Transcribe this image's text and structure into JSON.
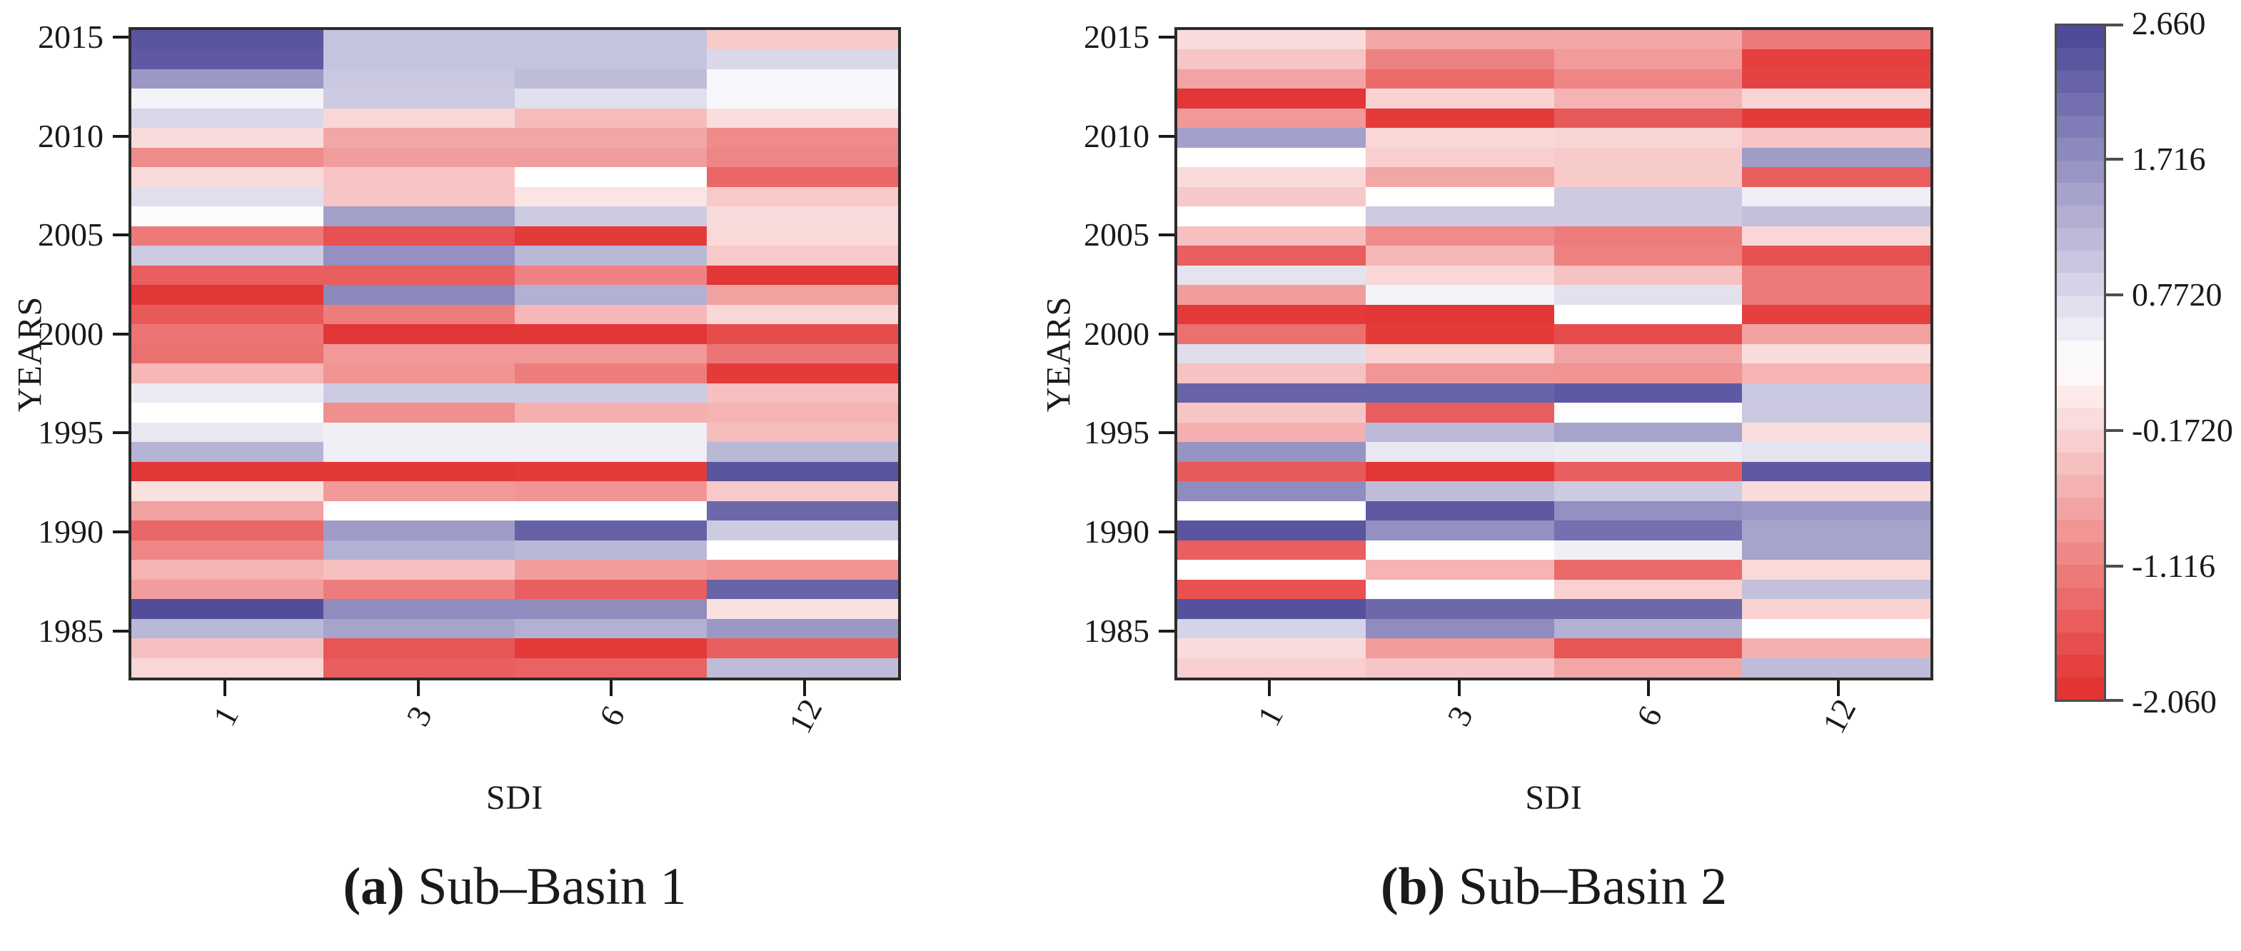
{
  "figure": {
    "background": "#ffffff",
    "border_color": "#2b2b2b",
    "tick_color": "#1a1a1a"
  },
  "colorbar": {
    "tick_labels": [
      "2.660",
      "1.716",
      "0.7720",
      "-0.1720",
      "-1.116",
      "-2.060"
    ],
    "tick_values": [
      2.66,
      1.716,
      0.772,
      -0.172,
      -1.116,
      -2.06
    ],
    "vmin": -2.06,
    "vmax": 2.66,
    "midpoint": 0.3,
    "color_high": "#4a4496",
    "color_mid": "#ffffff",
    "color_low": "#e22c2c",
    "steps": 30,
    "legend_position": "right"
  },
  "chart_data": [
    {
      "type": "heatmap",
      "panel": "a",
      "caption_marker": "(a)",
      "caption_text": "Sub–Basin 1",
      "xlabel": "SDI",
      "ylabel": "YEARS",
      "x_categories": [
        "1",
        "3",
        "6",
        "12"
      ],
      "y_tick_labels": [
        "2015",
        "2010",
        "2005",
        "2000",
        "1995",
        "1990",
        "1985"
      ],
      "years": [
        2015,
        2014,
        2013,
        2012,
        2011,
        2010,
        2009,
        2008,
        2007,
        2006,
        2005,
        2004,
        2003,
        2002,
        2001,
        2000,
        1999,
        1998,
        1997,
        1996,
        1995,
        1994,
        1993,
        1992,
        1991,
        1990,
        1989,
        1988,
        1987,
        1986,
        1985,
        1984,
        1983
      ],
      "values": [
        [
          2.45,
          1.05,
          1.05,
          -0.3
        ],
        [
          2.4,
          1.05,
          1.05,
          0.8
        ],
        [
          1.6,
          1.0,
          1.15,
          0.4
        ],
        [
          0.45,
          0.95,
          0.7,
          0.4
        ],
        [
          0.8,
          -0.15,
          -0.45,
          -0.08
        ],
        [
          -0.1,
          -0.7,
          -0.7,
          -1.0
        ],
        [
          -1.0,
          -0.8,
          -0.8,
          -1.05
        ],
        [
          -0.1,
          -0.35,
          0.3,
          -1.4
        ],
        [
          0.7,
          -0.35,
          0.0,
          -0.3
        ],
        [
          0.35,
          1.5,
          0.95,
          -0.1
        ],
        [
          -1.2,
          -1.65,
          -1.9,
          -0.12
        ],
        [
          0.95,
          1.7,
          1.2,
          -0.3
        ],
        [
          -1.5,
          -1.5,
          -1.1,
          -1.95
        ],
        [
          -1.95,
          1.8,
          1.3,
          -0.75
        ],
        [
          -1.55,
          -1.15,
          -0.5,
          -0.15
        ],
        [
          -1.25,
          -1.95,
          -1.95,
          -1.7
        ],
        [
          -1.3,
          -0.85,
          -0.85,
          -1.25
        ],
        [
          -0.5,
          -0.9,
          -1.15,
          -1.9
        ],
        [
          0.55,
          0.95,
          0.95,
          -0.4
        ],
        [
          0.3,
          -0.95,
          -0.6,
          -0.55
        ],
        [
          0.6,
          0.5,
          0.5,
          -0.45
        ],
        [
          1.25,
          0.5,
          0.5,
          1.2
        ],
        [
          -1.95,
          -1.95,
          -1.9,
          2.45
        ],
        [
          -0.05,
          -0.85,
          -0.9,
          -0.3
        ],
        [
          -0.75,
          0.3,
          0.3,
          2.2
        ],
        [
          -1.4,
          1.55,
          2.3,
          0.95
        ],
        [
          -1.05,
          1.3,
          1.2,
          0.3
        ],
        [
          -0.55,
          -0.4,
          -0.8,
          -0.9
        ],
        [
          -0.8,
          -1.15,
          -1.5,
          2.25
        ],
        [
          2.55,
          1.75,
          1.75,
          -0.05
        ],
        [
          1.2,
          1.45,
          1.3,
          1.6
        ],
        [
          -0.4,
          -1.6,
          -1.9,
          -1.5
        ],
        [
          -0.15,
          -1.5,
          -1.45,
          1.15
        ]
      ]
    },
    {
      "type": "heatmap",
      "panel": "b",
      "caption_marker": "(b)",
      "caption_text": "Sub–Basin 2",
      "xlabel": "SDI",
      "ylabel": "YEARS",
      "x_categories": [
        "1",
        "3",
        "6",
        "12"
      ],
      "y_tick_labels": [
        "2015",
        "2010",
        "2005",
        "2000",
        "1995",
        "1990",
        "1985"
      ],
      "years": [
        2015,
        2014,
        2013,
        2012,
        2011,
        2010,
        2009,
        2008,
        2007,
        2006,
        2005,
        2004,
        2003,
        2002,
        2001,
        2000,
        1999,
        1998,
        1997,
        1996,
        1995,
        1994,
        1993,
        1992,
        1991,
        1990,
        1989,
        1988,
        1987,
        1986,
        1985,
        1984,
        1983
      ],
      "values": [
        [
          -0.1,
          -0.7,
          -0.68,
          -1.2
        ],
        [
          -0.35,
          -1.1,
          -0.82,
          -1.85
        ],
        [
          -0.72,
          -1.35,
          -1.05,
          -1.8
        ],
        [
          -1.95,
          -0.2,
          -0.55,
          -0.18
        ],
        [
          -0.85,
          -1.9,
          -1.55,
          -1.9
        ],
        [
          1.5,
          -0.15,
          -0.18,
          -0.35
        ],
        [
          0.3,
          -0.25,
          -0.28,
          1.55
        ],
        [
          -0.12,
          -0.7,
          -0.28,
          -1.5
        ],
        [
          -0.32,
          0.3,
          0.95,
          0.5
        ],
        [
          0.3,
          0.95,
          0.95,
          1.1
        ],
        [
          -0.4,
          -1.0,
          -1.15,
          -0.15
        ],
        [
          -1.5,
          -0.5,
          -1.12,
          -1.65
        ],
        [
          0.65,
          -0.15,
          -0.38,
          -1.2
        ],
        [
          -0.8,
          0.45,
          0.68,
          -1.2
        ],
        [
          -1.92,
          -1.95,
          0.3,
          -1.85
        ],
        [
          -1.3,
          -1.9,
          -1.7,
          -0.75
        ],
        [
          0.72,
          -0.22,
          -0.72,
          -0.1
        ],
        [
          -0.38,
          -0.88,
          -0.9,
          -0.55
        ],
        [
          2.25,
          2.25,
          2.4,
          1.0
        ],
        [
          -0.35,
          -1.5,
          0.32,
          1.0
        ],
        [
          -0.58,
          1.18,
          1.45,
          -0.08
        ],
        [
          1.65,
          0.6,
          0.55,
          0.65
        ],
        [
          -1.55,
          -1.95,
          -1.5,
          2.4
        ],
        [
          1.75,
          1.15,
          0.95,
          -0.1
        ],
        [
          0.3,
          2.4,
          1.7,
          1.6
        ],
        [
          2.45,
          1.7,
          2.1,
          1.45
        ],
        [
          -1.5,
          0.32,
          0.5,
          1.45
        ],
        [
          0.3,
          -0.55,
          -1.38,
          -0.12
        ],
        [
          -1.65,
          0.3,
          -0.22,
          1.1
        ],
        [
          2.5,
          2.2,
          2.2,
          -0.22
        ],
        [
          0.85,
          1.75,
          1.3,
          0.3
        ],
        [
          -0.1,
          -0.82,
          -1.6,
          -0.58
        ],
        [
          -0.25,
          -0.35,
          -0.7,
          1.15
        ]
      ]
    }
  ]
}
